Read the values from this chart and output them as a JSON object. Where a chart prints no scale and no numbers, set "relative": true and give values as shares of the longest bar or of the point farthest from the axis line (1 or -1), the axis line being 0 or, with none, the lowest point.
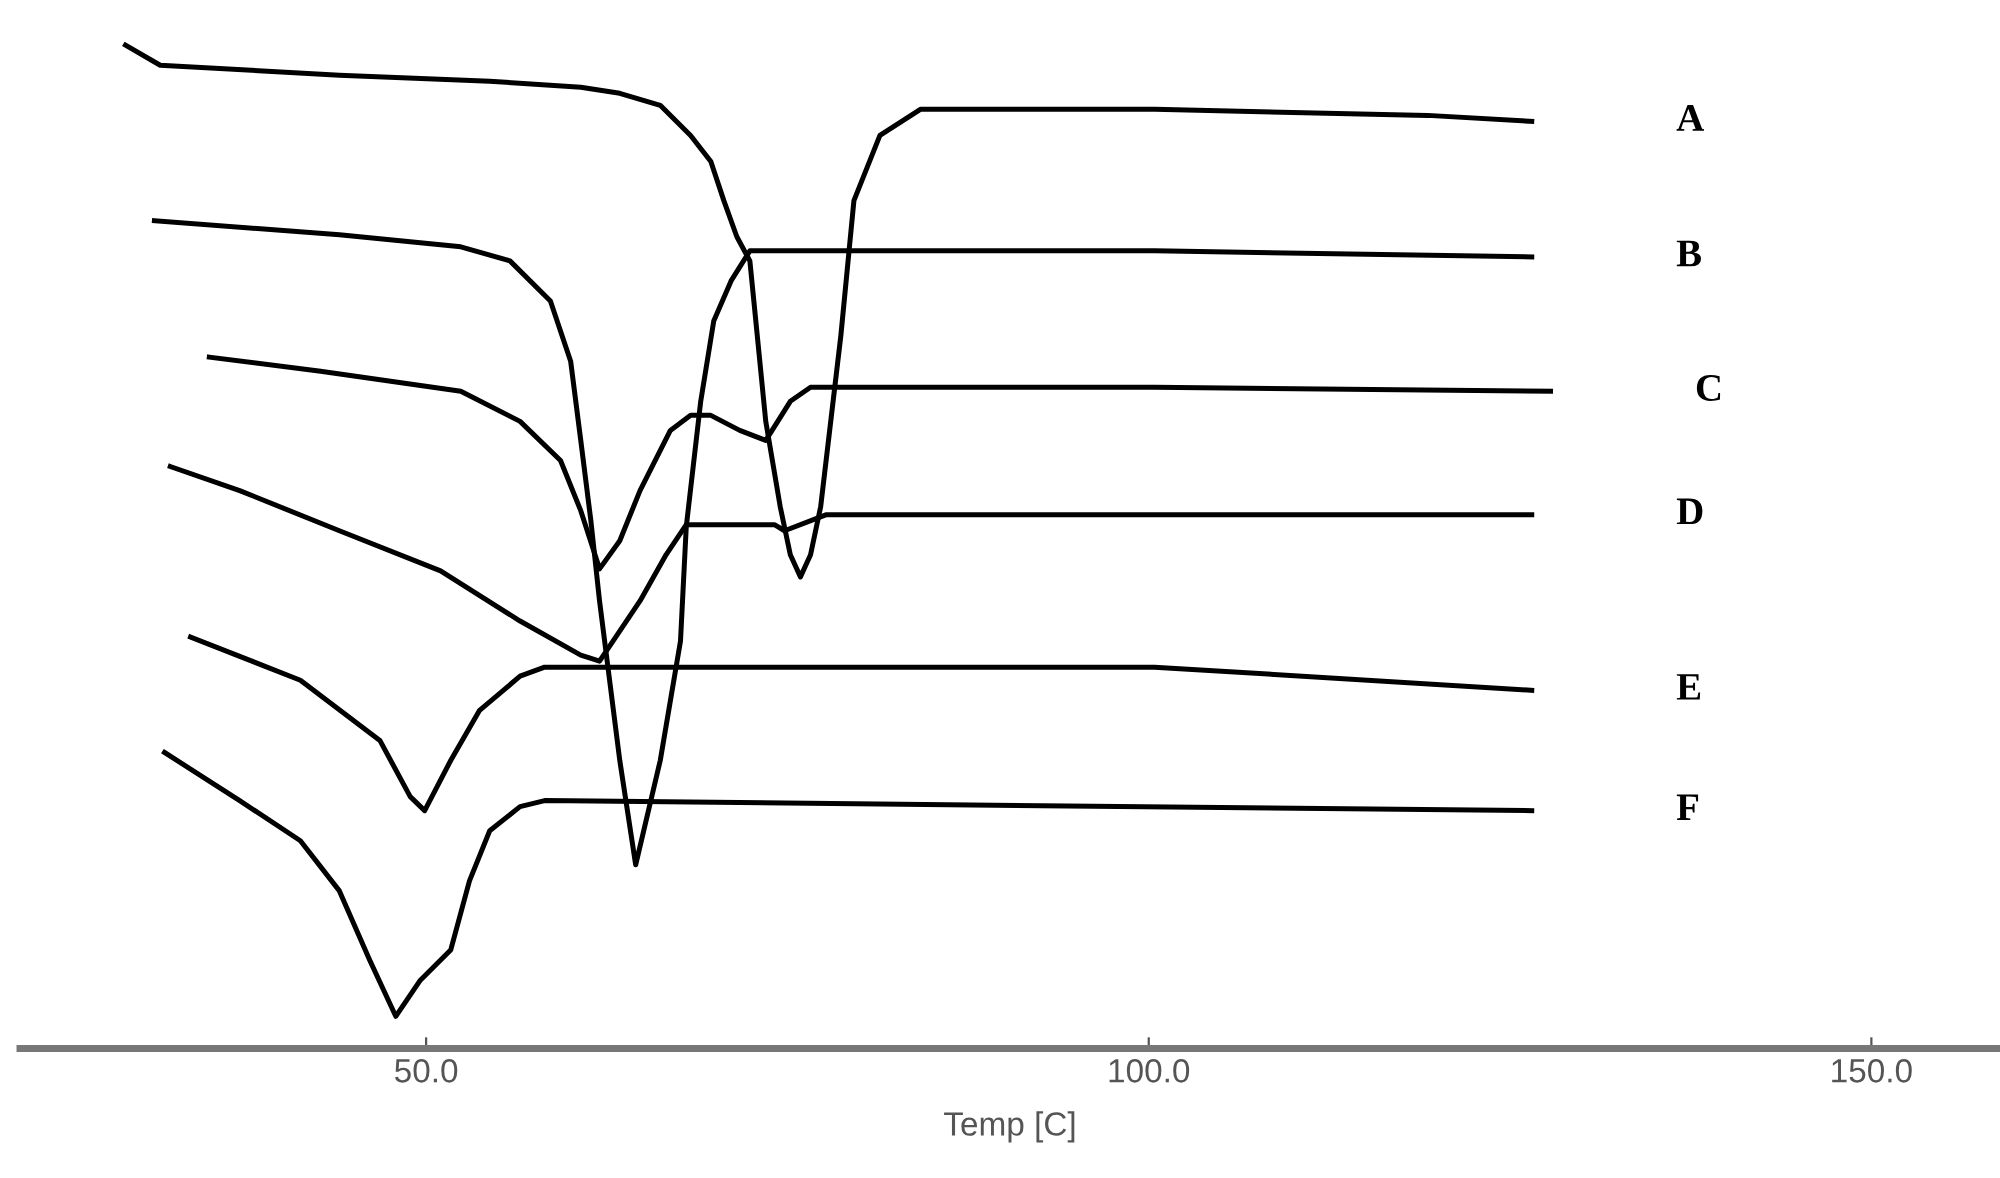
{
  "chart_data": {
    "type": "line",
    "xlabel": "Temp [C]",
    "relative": true,
    "xlim": [
      21.9,
      158.9
    ],
    "xticks": [
      {
        "value": 50,
        "label": "50.0"
      },
      {
        "value": 100,
        "label": "100.0"
      },
      {
        "value": 150,
        "label": "150.0"
      }
    ],
    "tick_labels": "x",
    "grid": false,
    "legend": false,
    "marker": "none",
    "line_style": "solid",
    "series": [
      {
        "name": "A",
        "color": "#000000",
        "x": [
          29.2,
          31.6,
          44.0,
          54.4,
          60.7,
          63.4,
          66.2,
          68.3,
          69.7,
          70.6,
          71.5,
          72.4,
          73.5,
          74.5,
          75.2,
          75.9,
          76.6,
          77.3,
          78.7,
          79.6,
          81.4,
          84.2,
          100.4,
          119.3,
          126.5
        ],
        "values": [
          1.0,
          0.98,
          0.97,
          0.964,
          0.958,
          0.952,
          0.94,
          0.91,
          0.884,
          0.845,
          0.809,
          0.785,
          0.625,
          0.54,
          0.492,
          0.47,
          0.492,
          0.54,
          0.711,
          0.845,
          0.91,
          0.936,
          0.936,
          0.93,
          0.924
        ]
      },
      {
        "name": "B",
        "color": "#000000",
        "x": [
          31.2,
          44.0,
          52.4,
          55.8,
          58.6,
          60.0,
          60.7,
          61.4,
          62.0,
          63.4,
          64.5,
          66.2,
          67.6,
          68.0,
          69.0,
          69.9,
          71.1,
          72.4,
          100.4,
          126.5
        ],
        "values": [
          0.825,
          0.811,
          0.799,
          0.785,
          0.745,
          0.685,
          0.606,
          0.526,
          0.446,
          0.287,
          0.183,
          0.287,
          0.406,
          0.52,
          0.645,
          0.725,
          0.765,
          0.795,
          0.795,
          0.789
        ]
      },
      {
        "name": "C",
        "color": "#000000",
        "x": [
          35.0,
          42.7,
          52.4,
          56.5,
          59.3,
          60.7,
          62.0,
          63.4,
          64.8,
          66.9,
          68.3,
          69.7,
          71.7,
          73.5,
          74.2,
          75.2,
          76.6,
          100.4,
          127.8
        ],
        "values": [
          0.689,
          0.675,
          0.655,
          0.625,
          0.586,
          0.536,
          0.478,
          0.506,
          0.556,
          0.616,
          0.631,
          0.631,
          0.616,
          0.606,
          0.622,
          0.645,
          0.659,
          0.659,
          0.655
        ]
      },
      {
        "name": "D",
        "color": "#000000",
        "x": [
          32.3,
          37.1,
          44.0,
          51.0,
          56.5,
          60.7,
          62.0,
          64.8,
          66.6,
          68.0,
          74.1,
          74.8,
          77.7,
          126.5
        ],
        "values": [
          0.58,
          0.556,
          0.516,
          0.476,
          0.426,
          0.392,
          0.386,
          0.446,
          0.492,
          0.522,
          0.522,
          0.516,
          0.532,
          0.532
        ]
      },
      {
        "name": "E",
        "color": "#000000",
        "x": [
          33.7,
          41.3,
          46.8,
          48.9,
          49.9,
          51.7,
          53.7,
          56.5,
          58.2,
          100.4,
          126.5
        ],
        "values": [
          0.41,
          0.367,
          0.307,
          0.251,
          0.237,
          0.287,
          0.337,
          0.371,
          0.38,
          0.38,
          0.357
        ]
      },
      {
        "name": "F",
        "color": "#000000",
        "x": [
          31.9,
          37.1,
          41.3,
          44.0,
          46.1,
          47.9,
          49.6,
          51.7,
          53.0,
          54.4,
          56.5,
          58.2,
          126.5
        ],
        "values": [
          0.295,
          0.247,
          0.207,
          0.157,
          0.088,
          0.032,
          0.068,
          0.098,
          0.167,
          0.217,
          0.241,
          0.247,
          0.237
        ]
      }
    ]
  }
}
